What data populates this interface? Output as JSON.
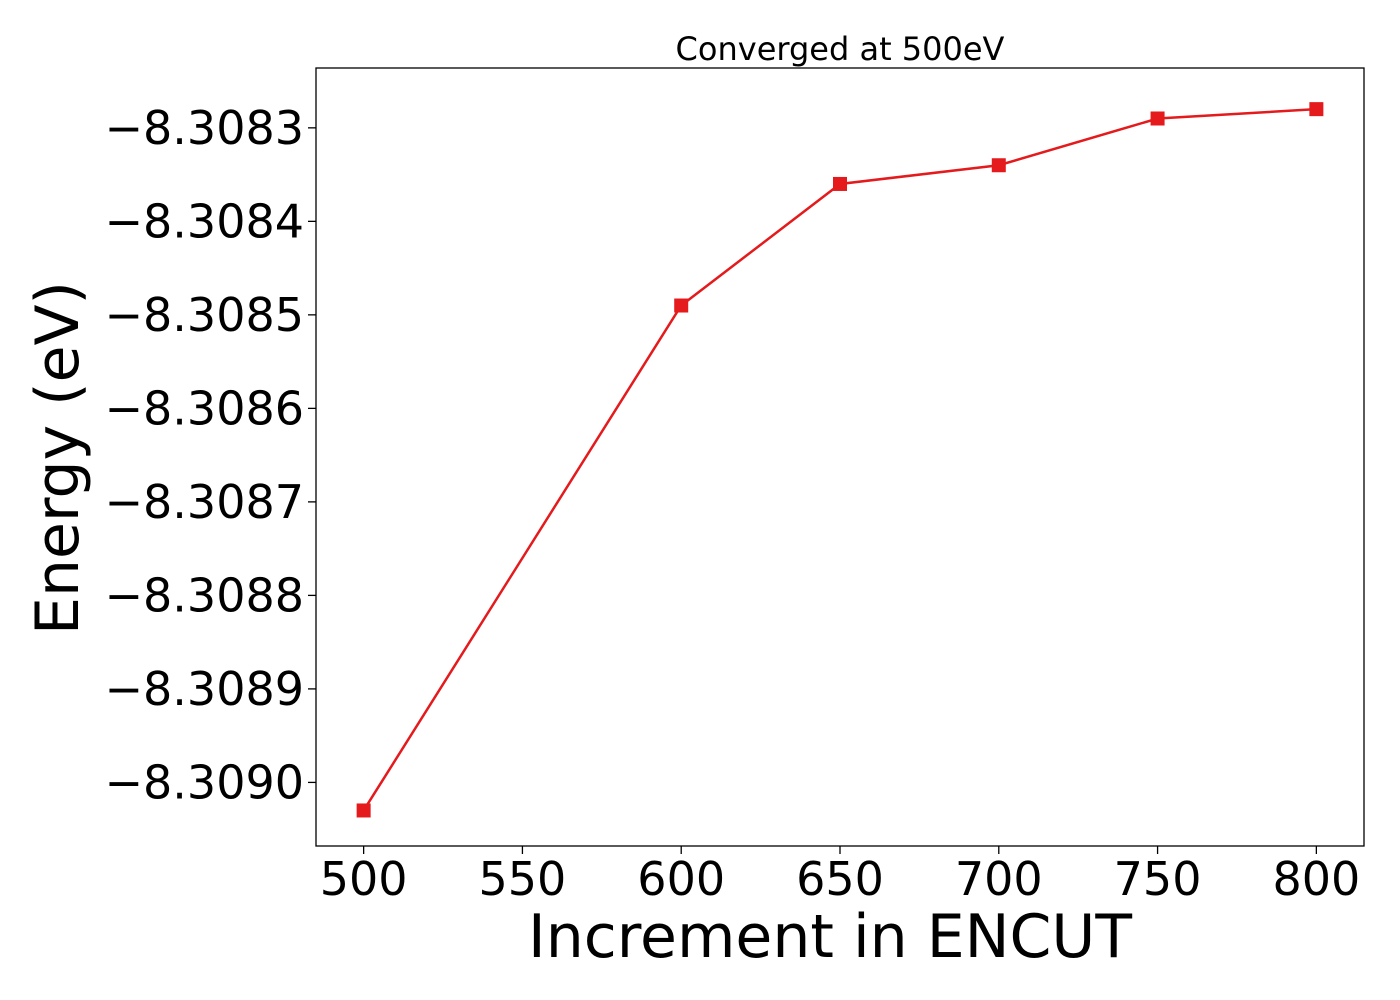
{
  "chart_data": {
    "type": "line",
    "title": "Converged at 500eV",
    "xlabel": "Increment in ENCUT",
    "ylabel": "Energy (eV)",
    "x": [
      500,
      600,
      650,
      700,
      750,
      800
    ],
    "series": [
      {
        "values": [
          -8.30903,
          -8.30849,
          -8.30836,
          -8.30834,
          -8.30829,
          -8.30828
        ],
        "color": "#e41a1c",
        "marker": "square"
      }
    ],
    "xticks": [
      500,
      550,
      600,
      650,
      700,
      750,
      800
    ],
    "xtick_labels": [
      "500",
      "550",
      "600",
      "650",
      "700",
      "750",
      "800"
    ],
    "yticks": [
      -8.309,
      -8.3089,
      -8.3088,
      -8.3087,
      -8.3086,
      -8.3085,
      -8.3084,
      -8.3083
    ],
    "ytick_labels": [
      "−8.3090",
      "−8.3089",
      "−8.3088",
      "−8.3087",
      "−8.3086",
      "−8.3085",
      "−8.3084",
      "−8.3083"
    ],
    "xlim": [
      485,
      815
    ],
    "ylim": [
      -8.309068,
      -8.308236
    ],
    "grid": false,
    "legend": "none"
  }
}
